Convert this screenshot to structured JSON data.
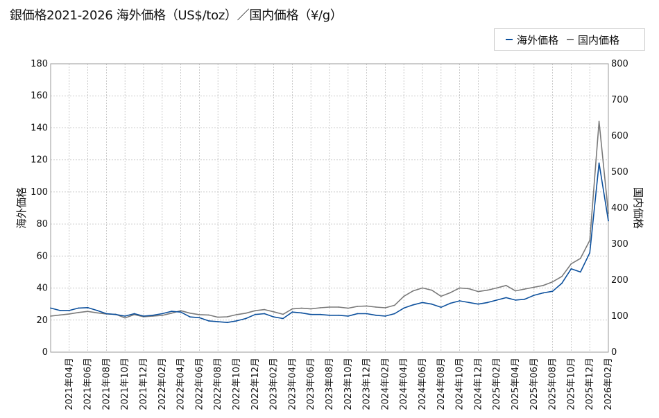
{
  "title": "銀価格2021-2026 海外価格（US$/toz）／国内価格（¥/g）",
  "legend": {
    "overseas": "海外価格",
    "domestic": "国内価格"
  },
  "colors": {
    "overseas": "#0b4f9c",
    "domestic": "#7a7a7a",
    "grid": "#bdbdbd"
  },
  "chart_data": {
    "type": "line",
    "title": "銀価格2021-2026 海外価格（US$/toz）／国内価格（¥/g）",
    "ylabel_left": "海外価格",
    "ylabel_right": "国内価格",
    "ylim_left": [
      0,
      180
    ],
    "ylim_right": [
      0,
      800
    ],
    "yticks_left": [
      "0",
      "20",
      "40",
      "60",
      "80",
      "100",
      "120",
      "140",
      "160",
      "180"
    ],
    "yticks_right": [
      "0",
      "100",
      "200",
      "300",
      "400",
      "500",
      "600",
      "700",
      "800"
    ],
    "xticks": [
      "2021年04月",
      "2021年06月",
      "2021年08月",
      "2021年10月",
      "2021年12月",
      "2022年02月",
      "2022年04月",
      "2022年06月",
      "2022年08月",
      "2022年10月",
      "2022年12月",
      "2023年02月",
      "2023年04月",
      "2023年06月",
      "2023年08月",
      "2023年10月",
      "2023年12月",
      "2024年02月",
      "2024年04月",
      "2024年06月",
      "2024年08月",
      "2024年10月",
      "2024年12月",
      "2025年02月",
      "2025年04月",
      "2025年06月",
      "2025年08月",
      "2025年10月",
      "2025年12月",
      "2026年02月"
    ],
    "grid": true,
    "legend_position": "top-right",
    "series": [
      {
        "name": "海外価格",
        "axis": "left",
        "x": [
          "2021-02",
          "2021-03",
          "2021-04",
          "2021-05",
          "2021-06",
          "2021-07",
          "2021-08",
          "2021-09",
          "2021-10",
          "2021-11",
          "2021-12",
          "2022-01",
          "2022-02",
          "2022-03",
          "2022-04",
          "2022-05",
          "2022-06",
          "2022-07",
          "2022-08",
          "2022-09",
          "2022-10",
          "2022-11",
          "2022-12",
          "2023-01",
          "2023-02",
          "2023-03",
          "2023-04",
          "2023-05",
          "2023-06",
          "2023-07",
          "2023-08",
          "2023-09",
          "2023-10",
          "2023-11",
          "2023-12",
          "2024-01",
          "2024-02",
          "2024-03",
          "2024-04",
          "2024-05",
          "2024-06",
          "2024-07",
          "2024-08",
          "2024-09",
          "2024-10",
          "2024-11",
          "2024-12",
          "2025-01",
          "2025-02",
          "2025-03",
          "2025-04",
          "2025-05",
          "2025-06",
          "2025-07",
          "2025-08",
          "2025-09",
          "2025-10",
          "2025-11",
          "2025-12",
          "2026-01",
          "2026-02"
        ],
        "values": [
          27.5,
          26.0,
          26.0,
          27.5,
          27.8,
          26.0,
          24.0,
          23.5,
          22.5,
          24.0,
          22.5,
          23.0,
          24.0,
          25.5,
          25.0,
          22.0,
          21.5,
          19.5,
          19.0,
          18.5,
          19.5,
          21.0,
          23.5,
          24.0,
          22.0,
          21.0,
          25.0,
          24.5,
          23.5,
          23.5,
          23.0,
          23.0,
          22.5,
          24.0,
          24.0,
          23.0,
          22.5,
          24.0,
          27.5,
          29.5,
          31.0,
          30.0,
          28.0,
          30.5,
          32.0,
          31.0,
          30.0,
          31.0,
          32.5,
          34.0,
          32.5,
          33.0,
          35.5,
          37.0,
          38.0,
          43.0,
          52.0,
          50.0,
          62.0,
          118.0,
          82.0
        ]
      },
      {
        "name": "国内価格",
        "axis": "right",
        "x": [
          "2021-02",
          "2021-03",
          "2021-04",
          "2021-05",
          "2021-06",
          "2021-07",
          "2021-08",
          "2021-09",
          "2021-10",
          "2021-11",
          "2021-12",
          "2022-01",
          "2022-02",
          "2022-03",
          "2022-04",
          "2022-05",
          "2022-06",
          "2022-07",
          "2022-08",
          "2022-09",
          "2022-10",
          "2022-11",
          "2022-12",
          "2023-01",
          "2023-02",
          "2023-03",
          "2023-04",
          "2023-05",
          "2023-06",
          "2023-07",
          "2023-08",
          "2023-09",
          "2023-10",
          "2023-11",
          "2023-12",
          "2024-01",
          "2024-02",
          "2024-03",
          "2024-04",
          "2024-05",
          "2024-06",
          "2024-07",
          "2024-08",
          "2024-09",
          "2024-10",
          "2024-11",
          "2024-12",
          "2025-01",
          "2025-02",
          "2025-03",
          "2025-04",
          "2025-05",
          "2025-06",
          "2025-07",
          "2025-08",
          "2025-09",
          "2025-10",
          "2025-11",
          "2025-12",
          "2026-01",
          "2026-02"
        ],
        "values": [
          100,
          103,
          106,
          110,
          113,
          109,
          106,
          105,
          95,
          104,
          98,
          100,
          102,
          108,
          115,
          108,
          104,
          103,
          97,
          98,
          104,
          108,
          115,
          118,
          112,
          105,
          120,
          122,
          120,
          123,
          125,
          125,
          122,
          127,
          128,
          125,
          123,
          130,
          155,
          170,
          178,
          172,
          155,
          165,
          178,
          176,
          168,
          172,
          178,
          185,
          170,
          175,
          180,
          185,
          195,
          210,
          245,
          260,
          310,
          640,
          385
        ]
      }
    ]
  }
}
